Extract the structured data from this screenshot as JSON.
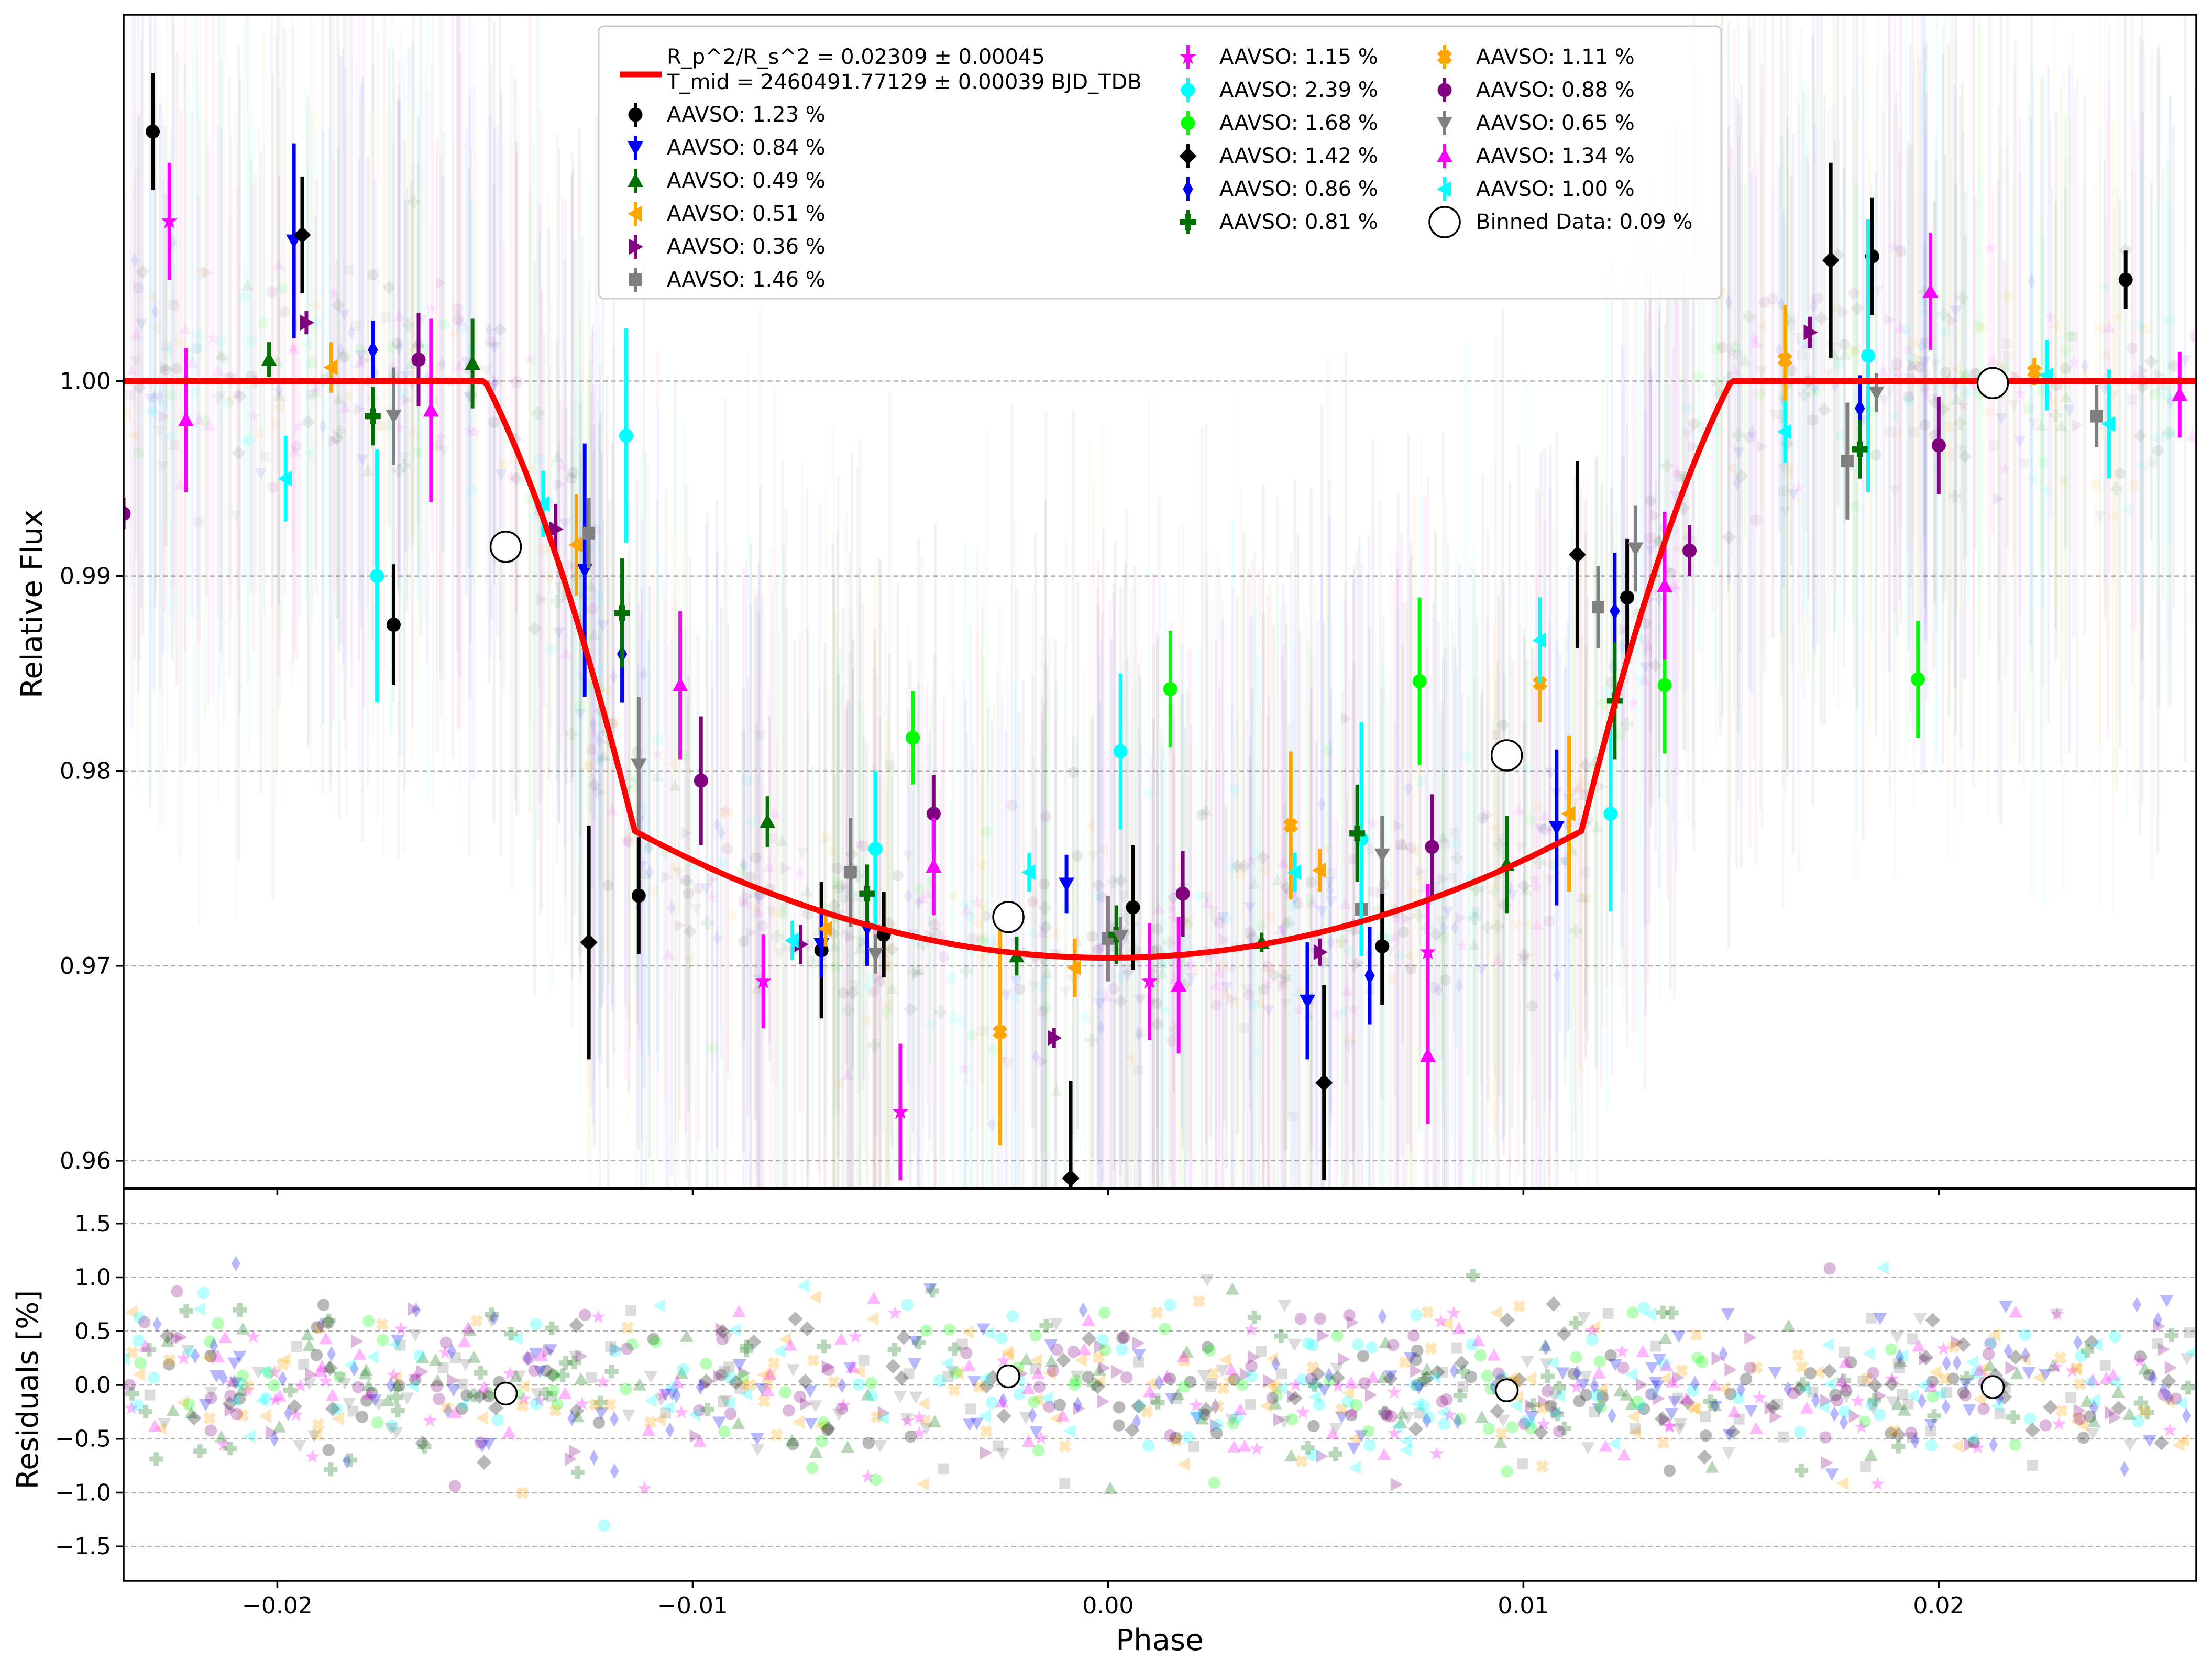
{
  "chart_data": [
    {
      "type": "scatter",
      "panel": "main",
      "title": "",
      "xlabel": "",
      "ylabel": "Relative Flux",
      "xlim": [
        -0.0237,
        0.0262
      ],
      "ylim": [
        0.9586,
        1.0188
      ],
      "yticks": [
        0.96,
        0.97,
        0.98,
        0.99,
        1.0
      ],
      "ytick_labels": [
        "0.96",
        "0.97",
        "0.98",
        "0.99",
        "1.00"
      ],
      "grid": "horizontal dashed",
      "legend_placement": "top-center",
      "model": {
        "name_line1": "R_p^2/R_s^2 = 0.02309 ± 0.00045",
        "name_line2": "T_mid = 2460491.77129 ± 0.00039 BJD_TDB",
        "color": "#ff0000",
        "baseline": 1.0,
        "depth": 0.02959,
        "contact_phases": [
          -0.015,
          -0.0114,
          0.0114,
          0.015
        ]
      },
      "series": [
        {
          "name": "AAVSO: 1.23 %",
          "color": "#000000",
          "marker": "circle",
          "points": [
            [
              -0.023,
              1.0128,
              0.003
            ],
            [
              -0.0172,
              0.9875,
              0.0031
            ],
            [
              -0.0113,
              0.9736,
              0.003
            ],
            [
              -0.0069,
              0.9708,
              0.0035
            ],
            [
              -0.0054,
              0.9716,
              0.0022
            ],
            [
              0.0006,
              0.973,
              0.0032
            ],
            [
              0.0066,
              0.971,
              0.003
            ],
            [
              0.0125,
              0.9889,
              0.003
            ],
            [
              0.0184,
              1.0064,
              0.003
            ],
            [
              0.0245,
              1.0052,
              0.0015
            ]
          ]
        },
        {
          "name": "AAVSO: 0.84 %",
          "color": "#0000ff",
          "marker": "triangle-down",
          "points": [
            [
              -0.0196,
              1.0072,
              0.005
            ],
            [
              -0.0126,
              0.9903,
              0.0065
            ],
            [
              -0.0069,
              0.9711,
              0.0017
            ],
            [
              -0.001,
              0.9742,
              0.0015
            ],
            [
              0.0048,
              0.9682,
              0.003
            ],
            [
              0.0108,
              0.9771,
              0.004
            ]
          ]
        },
        {
          "name": "AAVSO: 0.49 %",
          "color": "#007000",
          "marker": "triangle-up",
          "points": [
            [
              -0.0202,
              1.0011,
              0.0009
            ],
            [
              -0.0153,
              1.0009,
              0.0023
            ],
            [
              -0.0082,
              0.9774,
              0.0013
            ],
            [
              -0.0022,
              0.9705,
              0.001
            ],
            [
              0.0037,
              0.9712,
              0.0005
            ],
            [
              0.0096,
              0.9752,
              0.0025
            ]
          ]
        },
        {
          "name": "AAVSO: 0.51 %",
          "color": "#ffa500",
          "marker": "triangle-left",
          "points": [
            [
              -0.0187,
              1.0007,
              0.0013
            ],
            [
              -0.0128,
              0.9916,
              0.0026
            ],
            [
              -0.0068,
              0.9719,
              0.0009
            ],
            [
              -0.0008,
              0.9699,
              0.0015
            ],
            [
              0.0051,
              0.9749,
              0.0011
            ],
            [
              0.0111,
              0.9778,
              0.004
            ]
          ]
        },
        {
          "name": "AAVSO: 0.36 %",
          "color": "#800080",
          "marker": "triangle-right",
          "points": [
            [
              -0.0193,
              1.003,
              0.0006
            ],
            [
              -0.0133,
              0.9924,
              0.0013
            ],
            [
              -0.0074,
              0.9711,
              0.001
            ],
            [
              -0.0013,
              0.9663,
              0.0005
            ],
            [
              0.0051,
              0.9707,
              0.0007
            ],
            [
              0.0169,
              1.0025,
              0.0008
            ]
          ]
        },
        {
          "name": "AAVSO: 1.46 %",
          "color": "#808080",
          "marker": "square",
          "points": [
            [
              -0.0125,
              0.9922,
              0.0018
            ],
            [
              -0.0062,
              0.9748,
              0.0028
            ],
            [
              0.0,
              0.9714,
              0.0022
            ],
            [
              0.0061,
              0.9729,
              0.0023
            ],
            [
              0.0118,
              0.9884,
              0.0021
            ],
            [
              0.0178,
              0.9959,
              0.003
            ],
            [
              0.0238,
              0.9982,
              0.0016
            ]
          ]
        },
        {
          "name": "AAVSO: 1.15 %",
          "color": "#ff00ff",
          "marker": "star",
          "points": [
            [
              -0.0226,
              1.0082,
              0.003
            ],
            [
              -0.0083,
              0.9692,
              0.0024
            ],
            [
              -0.005,
              0.9625,
              0.0035
            ],
            [
              0.001,
              0.9692,
              0.003
            ],
            [
              0.0077,
              0.9707,
              0.0035
            ]
          ]
        },
        {
          "name": "AAVSO: 2.39 %",
          "color": "#00ffff",
          "marker": "hexagon",
          "points": [
            [
              -0.0176,
              0.99,
              0.0065
            ],
            [
              -0.0116,
              0.9972,
              0.0055
            ],
            [
              -0.0056,
              0.976,
              0.004
            ],
            [
              0.0003,
              0.981,
              0.004
            ],
            [
              0.0061,
              0.9765,
              0.006
            ],
            [
              0.0121,
              0.9778,
              0.005
            ],
            [
              0.0183,
              1.0013,
              0.007
            ]
          ]
        },
        {
          "name": "AAVSO: 1.68 %",
          "color": "#00ff00",
          "marker": "circle",
          "points": [
            [
              -0.0047,
              0.9817,
              0.0024
            ],
            [
              0.0015,
              0.9842,
              0.003
            ],
            [
              0.0075,
              0.9846,
              0.0043
            ],
            [
              0.0134,
              0.9844,
              0.0035
            ],
            [
              0.0195,
              0.9847,
              0.003
            ]
          ]
        },
        {
          "name": "AAVSO: 1.42 %",
          "color": "#000000",
          "marker": "diamond",
          "points": [
            [
              -0.0194,
              1.0075,
              0.003
            ],
            [
              -0.0125,
              0.9712,
              0.006
            ],
            [
              -0.0009,
              0.9591,
              0.005
            ],
            [
              0.0052,
              0.964,
              0.005
            ],
            [
              0.0113,
              0.9911,
              0.0048
            ],
            [
              0.0174,
              1.0062,
              0.005
            ]
          ]
        },
        {
          "name": "AAVSO: 0.86 %",
          "color": "#0000ff",
          "marker": "thin-diamond",
          "points": [
            [
              -0.0177,
              1.0016,
              0.0015
            ],
            [
              -0.0117,
              0.986,
              0.0025
            ],
            [
              -0.0058,
              0.972,
              0.002
            ],
            [
              0.0063,
              0.9695,
              0.0025
            ],
            [
              0.0122,
              0.9882,
              0.003
            ],
            [
              0.0181,
              0.9986,
              0.0017
            ]
          ]
        },
        {
          "name": "AAVSO: 0.81 %",
          "color": "#007000",
          "marker": "plus",
          "points": [
            [
              -0.0177,
              0.9982,
              0.0015
            ],
            [
              -0.0117,
              0.9881,
              0.0028
            ],
            [
              -0.0058,
              0.9737,
              0.0015
            ],
            [
              0.0002,
              0.9716,
              0.0015
            ],
            [
              0.006,
              0.9768,
              0.0025
            ],
            [
              0.0122,
              0.9836,
              0.003
            ],
            [
              0.0181,
              0.9965,
              0.0015
            ]
          ]
        },
        {
          "name": "AAVSO: 1.11 %",
          "color": "#ffa500",
          "marker": "x",
          "points": [
            [
              -0.0026,
              0.9666,
              0.0058
            ],
            [
              0.0044,
              0.9772,
              0.0038
            ],
            [
              0.0104,
              0.9845,
              0.002
            ],
            [
              0.0163,
              1.0011,
              0.0028
            ],
            [
              0.0223,
              1.0005,
              0.0007
            ]
          ]
        },
        {
          "name": "AAVSO: 0.88 %",
          "color": "#800080",
          "marker": "circle",
          "points": [
            [
              -0.0237,
              0.9932,
              0.0008
            ],
            [
              -0.0166,
              1.0011,
              0.0024
            ],
            [
              -0.0098,
              0.9795,
              0.0033
            ],
            [
              -0.0042,
              0.9778,
              0.002
            ],
            [
              0.0018,
              0.9737,
              0.0022
            ],
            [
              0.0078,
              0.9761,
              0.0027
            ],
            [
              0.014,
              0.9913,
              0.0013
            ],
            [
              0.02,
              0.9967,
              0.0025
            ]
          ]
        },
        {
          "name": "AAVSO: 0.65 %",
          "color": "#808080",
          "marker": "triangle-down",
          "points": [
            [
              -0.0172,
              0.9982,
              0.0025
            ],
            [
              -0.0113,
              0.9803,
              0.0035
            ],
            [
              -0.0056,
              0.9706,
              0.001
            ],
            [
              0.0003,
              0.9715,
              0.001
            ],
            [
              0.0066,
              0.9757,
              0.002
            ],
            [
              0.0127,
              0.9914,
              0.0022
            ],
            [
              0.0185,
              0.9994,
              0.001
            ]
          ]
        },
        {
          "name": "AAVSO: 1.34 %",
          "color": "#ff00ff",
          "marker": "triangle-up",
          "points": [
            [
              -0.0222,
              0.998,
              0.0037
            ],
            [
              -0.0163,
              0.9985,
              0.0047
            ],
            [
              -0.0103,
              0.9844,
              0.0038
            ],
            [
              -0.0042,
              0.9751,
              0.0025
            ],
            [
              0.0017,
              0.969,
              0.0035
            ],
            [
              0.0077,
              0.9654,
              0.0035
            ],
            [
              0.0134,
              0.9895,
              0.0038
            ],
            [
              0.0198,
              1.0046,
              0.003
            ],
            [
              0.0258,
              0.9993,
              0.0022
            ]
          ]
        },
        {
          "name": "AAVSO: 1.00 %",
          "color": "#00ffff",
          "marker": "triangle-left",
          "points": [
            [
              -0.0198,
              0.995,
              0.0022
            ],
            [
              -0.0136,
              0.9937,
              0.0017
            ],
            [
              -0.0076,
              0.9713,
              0.001
            ],
            [
              -0.0019,
              0.9748,
              0.001
            ],
            [
              0.0045,
              0.9748,
              0.001
            ],
            [
              0.0104,
              0.9867,
              0.0022
            ],
            [
              0.0163,
              0.9974,
              0.0016
            ],
            [
              0.0226,
              1.0003,
              0.0018
            ],
            [
              0.0241,
              0.9978,
              0.0028
            ]
          ]
        }
      ],
      "binned": {
        "name": "Binned Data: 0.09 %",
        "marker": "open-circle",
        "points": [
          [
            -0.0145,
            0.9915
          ],
          [
            -0.0024,
            0.9725
          ],
          [
            0.0096,
            0.9808
          ],
          [
            0.0213,
            0.9999
          ]
        ]
      }
    },
    {
      "type": "scatter",
      "panel": "residuals",
      "title": "",
      "xlabel": "Phase",
      "ylabel": "Residuals [%]",
      "xlim": [
        -0.0237,
        0.0262
      ],
      "ylim": [
        -1.82,
        1.82
      ],
      "yticks": [
        -1.5,
        -1.0,
        -0.5,
        0.0,
        0.5,
        1.0,
        1.5
      ],
      "ytick_labels": [
        "−1.5",
        "−1.0",
        "−0.5",
        "0.0",
        "0.5",
        "1.0",
        "1.5"
      ],
      "xticks": [
        -0.02,
        -0.01,
        0.0,
        0.01,
        0.02
      ],
      "xtick_labels": [
        "−0.02",
        "−0.01",
        "0.00",
        "0.01",
        "0.02"
      ],
      "grid": "horizontal dashed",
      "binned_residuals": [
        [
          -0.0145,
          -0.08
        ],
        [
          -0.0024,
          0.08
        ],
        [
          0.0096,
          -0.05
        ],
        [
          0.0213,
          -0.02
        ]
      ]
    }
  ],
  "legend": {
    "columns": [
      [
        "model",
        "AAVSO: 1.23 %",
        "AAVSO: 0.84 %",
        "AAVSO: 0.49 %",
        "AAVSO: 0.51 %",
        "AAVSO: 0.36 %",
        "AAVSO: 1.46 %"
      ],
      [
        "AAVSO: 1.15 %",
        "AAVSO: 2.39 %",
        "AAVSO: 1.68 %",
        "AAVSO: 1.42 %",
        "AAVSO: 0.86 %",
        "AAVSO: 0.81 %"
      ],
      [
        "AAVSO: 1.11 %",
        "AAVSO: 0.88 %",
        "AAVSO: 0.65 %",
        "AAVSO: 1.34 %",
        "AAVSO: 1.00 %",
        "Binned Data: 0.09 %"
      ]
    ]
  }
}
